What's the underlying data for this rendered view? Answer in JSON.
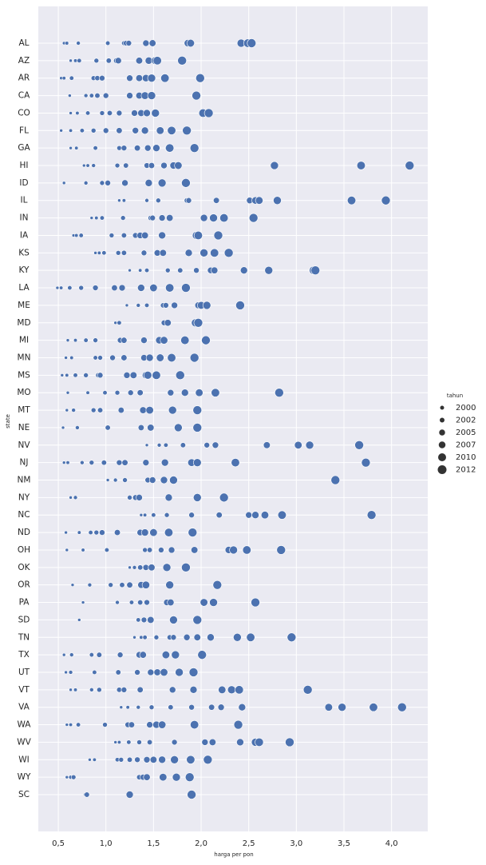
{
  "chart_data": {
    "type": "scatter",
    "xlabel": "harga per pon",
    "ylabel": "state",
    "color": "#4c72b0",
    "grid": true,
    "xlim": [
      0.29,
      4.38
    ],
    "xticks": [
      {
        "value": 0.5,
        "label": "0,5"
      },
      {
        "value": 1.0,
        "label": "1,0"
      },
      {
        "value": 1.5,
        "label": "1,5"
      },
      {
        "value": 2.0,
        "label": "2,0"
      },
      {
        "value": 2.5,
        "label": "2,5"
      },
      {
        "value": 3.0,
        "label": "3,0"
      },
      {
        "value": 3.5,
        "label": "3,5"
      },
      {
        "value": 4.0,
        "label": "4,0"
      }
    ],
    "categories": [
      "AL",
      "AZ",
      "AR",
      "CA",
      "CO",
      "FL",
      "GA",
      "HI",
      "ID",
      "IL",
      "IN",
      "IA",
      "KS",
      "KY",
      "LA",
      "ME",
      "MD",
      "MI",
      "MN",
      "MS",
      "MO",
      "MT",
      "NE",
      "NV",
      "NJ",
      "NM",
      "NY",
      "NC",
      "ND",
      "OH",
      "OK",
      "OR",
      "PA",
      "SD",
      "TN",
      "TX",
      "UT",
      "VT",
      "VA",
      "WA",
      "WV",
      "WI",
      "WY",
      "SC"
    ],
    "points": [
      {
        "x": [
          0.56,
          0.59,
          0.71,
          1.02,
          1.19,
          1.21,
          1.24,
          1.42,
          1.49,
          1.86,
          1.89,
          2.42,
          2.49,
          2.53
        ],
        "year": [
          1998,
          1999,
          2000,
          2001,
          2002,
          2003,
          2004,
          2006,
          2007,
          2008,
          2009,
          2010,
          2011,
          2012
        ]
      },
      {
        "x": [
          0.63,
          0.68,
          0.72,
          0.9,
          1.03,
          1.11,
          1.13,
          1.35,
          1.45,
          1.52,
          1.54,
          1.8
        ],
        "year": [
          1998,
          1999,
          2001,
          2002,
          2003,
          2004,
          2006,
          2007,
          2008,
          2010,
          2011,
          2012
        ]
      },
      {
        "x": [
          0.53,
          0.56,
          0.64,
          0.87,
          0.91,
          0.96,
          1.25,
          1.35,
          1.42,
          1.48,
          1.62,
          1.99
        ],
        "year": [
          1998,
          1999,
          2001,
          2002,
          2003,
          2004,
          2006,
          2007,
          2008,
          2010,
          2011,
          2012
        ]
      },
      {
        "x": [
          0.62,
          0.79,
          0.85,
          0.91,
          1.0,
          1.25,
          1.35,
          1.41,
          1.48,
          1.95
        ],
        "year": [
          1998,
          2000,
          2001,
          2003,
          2004,
          2006,
          2007,
          2009,
          2010,
          2012
        ]
      },
      {
        "x": [
          0.63,
          0.7,
          0.81,
          0.96,
          1.04,
          1.14,
          1.3,
          1.37,
          1.43,
          1.52,
          2.02,
          2.08
        ],
        "year": [
          1998,
          1999,
          2001,
          2002,
          2003,
          2004,
          2006,
          2007,
          2008,
          2010,
          2011,
          2012
        ]
      },
      {
        "x": [
          0.53,
          0.63,
          0.75,
          0.87,
          1.0,
          1.14,
          1.31,
          1.41,
          1.57,
          1.69,
          1.85
        ],
        "year": [
          1998,
          1999,
          2001,
          2002,
          2004,
          2005,
          2006,
          2008,
          2009,
          2011,
          2012
        ]
      },
      {
        "x": [
          0.63,
          0.69,
          0.89,
          1.14,
          1.19,
          1.33,
          1.44,
          1.53,
          1.66,
          1.67,
          1.93
        ],
        "year": [
          1998,
          1999,
          2001,
          2002,
          2004,
          2005,
          2006,
          2008,
          2009,
          2011,
          2012
        ]
      },
      {
        "x": [
          0.77,
          0.81,
          0.87,
          1.12,
          1.21,
          1.43,
          1.48,
          1.61,
          1.71,
          1.76,
          2.77,
          3.68,
          4.19
        ],
        "year": [
          1998,
          1999,
          2000,
          2002,
          2003,
          2004,
          2005,
          2006,
          2008,
          2009,
          2010,
          2011,
          2012
        ]
      },
      {
        "x": [
          0.56,
          0.79,
          0.96,
          1.02,
          1.2,
          1.45,
          1.59,
          1.84
        ],
        "year": [
          1998,
          2000,
          2002,
          2004,
          2006,
          2008,
          2010,
          2012
        ]
      },
      {
        "x": [
          1.14,
          1.19,
          1.43,
          1.55,
          1.85,
          1.87,
          2.16,
          2.51,
          2.57,
          2.61,
          2.8,
          3.58,
          3.94
        ],
        "year": [
          1998,
          1999,
          2000,
          2002,
          2003,
          2004,
          2005,
          2006,
          2008,
          2009,
          2010,
          2011,
          2012
        ]
      },
      {
        "x": [
          0.85,
          0.9,
          0.96,
          1.18,
          1.47,
          1.49,
          1.59,
          1.67,
          2.03,
          2.13,
          2.24,
          2.55
        ],
        "year": [
          1998,
          1999,
          2001,
          2002,
          2003,
          2004,
          2006,
          2007,
          2008,
          2010,
          2011,
          2012
        ]
      },
      {
        "x": [
          0.66,
          0.69,
          0.74,
          1.06,
          1.19,
          1.31,
          1.36,
          1.41,
          1.59,
          1.95,
          1.97,
          2.18
        ],
        "year": [
          1998,
          1999,
          2001,
          2002,
          2003,
          2004,
          2006,
          2007,
          2008,
          2010,
          2011,
          2012
        ]
      },
      {
        "x": [
          0.89,
          0.93,
          0.98,
          1.13,
          1.19,
          1.4,
          1.54,
          1.6,
          1.87,
          2.03,
          2.14,
          2.29
        ],
        "year": [
          1998,
          1999,
          2001,
          2002,
          2003,
          2004,
          2006,
          2007,
          2008,
          2010,
          2011,
          2012
        ]
      },
      {
        "x": [
          1.25,
          1.36,
          1.43,
          1.65,
          1.78,
          1.95,
          2.1,
          2.14,
          2.45,
          2.71,
          3.18,
          3.2
        ],
        "year": [
          1998,
          1999,
          2001,
          2002,
          2003,
          2004,
          2006,
          2007,
          2008,
          2010,
          2011,
          2012
        ]
      },
      {
        "x": [
          0.49,
          0.53,
          0.62,
          0.74,
          0.89,
          1.09,
          1.17,
          1.37,
          1.5,
          1.67,
          1.84
        ],
        "year": [
          1998,
          1999,
          2001,
          2002,
          2004,
          2005,
          2006,
          2008,
          2009,
          2011,
          2012
        ]
      },
      {
        "x": [
          1.22,
          1.34,
          1.43,
          1.6,
          1.63,
          1.72,
          1.97,
          2.0,
          2.06,
          2.41
        ],
        "year": [
          1998,
          2000,
          2001,
          2003,
          2004,
          2006,
          2007,
          2009,
          2010,
          2012
        ]
      },
      {
        "x": [
          1.1,
          1.14,
          1.61,
          1.65,
          1.94,
          1.97
        ],
        "year": [
          1998,
          2001,
          2004,
          2007,
          2010,
          2012
        ]
      },
      {
        "x": [
          0.6,
          0.68,
          0.79,
          0.89,
          1.15,
          1.19,
          1.4,
          1.56,
          1.61,
          1.83,
          2.05
        ],
        "year": [
          1998,
          1999,
          2001,
          2002,
          2004,
          2005,
          2006,
          2008,
          2009,
          2011,
          2012
        ]
      },
      {
        "x": [
          0.58,
          0.64,
          0.89,
          0.94,
          1.07,
          1.19,
          1.4,
          1.46,
          1.57,
          1.69,
          1.93
        ],
        "year": [
          1998,
          1999,
          2001,
          2002,
          2004,
          2005,
          2006,
          2008,
          2009,
          2011,
          2012
        ]
      },
      {
        "x": [
          0.54,
          0.59,
          0.68,
          0.79,
          0.92,
          0.94,
          1.22,
          1.29,
          1.42,
          1.44,
          1.53,
          1.78
        ],
        "year": [
          1998,
          1999,
          2001,
          2002,
          2003,
          2004,
          2006,
          2007,
          2008,
          2010,
          2011,
          2012
        ]
      },
      {
        "x": [
          0.6,
          0.81,
          0.99,
          1.12,
          1.26,
          1.36,
          1.68,
          1.83,
          1.98,
          2.15,
          2.82
        ],
        "year": [
          1998,
          1999,
          2001,
          2002,
          2004,
          2005,
          2006,
          2008,
          2009,
          2011,
          2012
        ]
      },
      {
        "x": [
          0.59,
          0.66,
          0.87,
          0.94,
          1.16,
          1.39,
          1.46,
          1.7,
          1.96
        ],
        "year": [
          1998,
          2000,
          2002,
          2003,
          2005,
          2007,
          2009,
          2010,
          2012
        ]
      },
      {
        "x": [
          0.55,
          0.7,
          1.02,
          1.37,
          1.47,
          1.76,
          1.96
        ],
        "year": [
          1998,
          2000,
          2003,
          2005,
          2007,
          2010,
          2012
        ]
      },
      {
        "x": [
          1.43,
          1.56,
          1.63,
          1.81,
          2.06,
          2.15,
          2.69,
          3.02,
          3.14,
          3.66
        ],
        "year": [
          1998,
          2000,
          2001,
          2003,
          2004,
          2006,
          2007,
          2009,
          2010,
          2012
        ]
      },
      {
        "x": [
          0.56,
          0.6,
          0.75,
          0.85,
          0.98,
          1.14,
          1.2,
          1.42,
          1.62,
          1.9,
          1.96,
          2.36,
          3.73
        ],
        "year": [
          1998,
          1999,
          2000,
          2002,
          2003,
          2004,
          2005,
          2006,
          2008,
          2009,
          2010,
          2011,
          2012
        ]
      },
      {
        "x": [
          1.02,
          1.1,
          1.2,
          1.44,
          1.49,
          1.61,
          1.71,
          3.41
        ],
        "year": [
          1998,
          2000,
          2002,
          2004,
          2006,
          2008,
          2010,
          2012
        ]
      },
      {
        "x": [
          0.63,
          0.68,
          1.25,
          1.31,
          1.35,
          1.66,
          1.96,
          2.24
        ],
        "year": [
          1998,
          2000,
          2002,
          2004,
          2006,
          2008,
          2010,
          2012
        ]
      },
      {
        "x": [
          1.37,
          1.41,
          1.5,
          1.64,
          1.9,
          2.19,
          2.5,
          2.57,
          2.67,
          2.85,
          3.79
        ],
        "year": [
          1998,
          1999,
          2001,
          2002,
          2004,
          2005,
          2006,
          2008,
          2009,
          2011,
          2012
        ]
      },
      {
        "x": [
          0.58,
          0.72,
          0.84,
          0.9,
          0.96,
          1.12,
          1.36,
          1.41,
          1.5,
          1.66,
          1.91
        ],
        "year": [
          1998,
          1999,
          2001,
          2002,
          2004,
          2005,
          2006,
          2008,
          2009,
          2011,
          2012
        ]
      },
      {
        "x": [
          0.59,
          0.76,
          1.01,
          1.41,
          1.46,
          1.58,
          1.69,
          1.93,
          2.29,
          2.34,
          2.48,
          2.84
        ],
        "year": [
          1998,
          1999,
          2001,
          2002,
          2003,
          2004,
          2006,
          2007,
          2008,
          2010,
          2011,
          2012
        ]
      },
      {
        "x": [
          1.25,
          1.3,
          1.36,
          1.42,
          1.48,
          1.64,
          1.84
        ],
        "year": [
          1998,
          2000,
          2003,
          2005,
          2007,
          2010,
          2012
        ]
      },
      {
        "x": [
          0.65,
          0.83,
          1.05,
          1.17,
          1.25,
          1.37,
          1.42,
          1.67,
          2.17
        ],
        "year": [
          1998,
          2000,
          2002,
          2003,
          2005,
          2007,
          2009,
          2010,
          2012
        ]
      },
      {
        "x": [
          0.76,
          1.12,
          1.27,
          1.36,
          1.43,
          1.64,
          1.68,
          2.03,
          2.13,
          2.57
        ],
        "year": [
          1998,
          2000,
          2001,
          2003,
          2004,
          2006,
          2007,
          2009,
          2010,
          2012
        ]
      },
      {
        "x": [
          0.72,
          1.34,
          1.4,
          1.47,
          1.71,
          1.96
        ],
        "year": [
          1998,
          2001,
          2004,
          2007,
          2010,
          2012
        ]
      },
      {
        "x": [
          1.3,
          1.37,
          1.41,
          1.53,
          1.67,
          1.71,
          1.85,
          1.96,
          2.1,
          2.38,
          2.52,
          2.95
        ],
        "year": [
          1998,
          1999,
          2001,
          2002,
          2003,
          2004,
          2006,
          2007,
          2008,
          2010,
          2011,
          2012
        ]
      },
      {
        "x": [
          0.56,
          0.64,
          0.85,
          0.93,
          1.15,
          1.35,
          1.39,
          1.63,
          1.73,
          2.01
        ],
        "year": [
          1998,
          2000,
          2001,
          2003,
          2004,
          2006,
          2007,
          2009,
          2010,
          2012
        ]
      },
      {
        "x": [
          0.58,
          0.63,
          0.88,
          1.13,
          1.33,
          1.47,
          1.54,
          1.61,
          1.77,
          1.92
        ],
        "year": [
          1998,
          2000,
          2001,
          2003,
          2004,
          2006,
          2007,
          2009,
          2010,
          2012
        ]
      },
      {
        "x": [
          0.63,
          0.68,
          0.85,
          0.93,
          1.14,
          1.19,
          1.36,
          1.7,
          1.92,
          2.22,
          2.32,
          2.4,
          3.12
        ],
        "year": [
          1998,
          1999,
          2000,
          2002,
          2003,
          2004,
          2005,
          2006,
          2008,
          2009,
          2010,
          2011,
          2012
        ]
      },
      {
        "x": [
          1.16,
          1.23,
          1.34,
          1.48,
          1.68,
          1.9,
          2.11,
          2.21,
          2.43,
          3.34,
          3.48,
          3.81,
          4.11
        ],
        "year": [
          1998,
          1999,
          2000,
          2002,
          2003,
          2004,
          2005,
          2006,
          2008,
          2009,
          2010,
          2011,
          2012
        ]
      },
      {
        "x": [
          0.59,
          0.63,
          0.71,
          0.99,
          1.23,
          1.27,
          1.46,
          1.53,
          1.59,
          1.93,
          2.39
        ],
        "year": [
          1998,
          1999,
          2001,
          2002,
          2004,
          2005,
          2006,
          2008,
          2009,
          2011,
          2012
        ]
      },
      {
        "x": [
          1.1,
          1.14,
          1.24,
          1.35,
          1.46,
          1.72,
          2.04,
          2.12,
          2.41,
          2.57,
          2.61,
          2.93
        ],
        "year": [
          1998,
          1999,
          2001,
          2002,
          2003,
          2004,
          2006,
          2007,
          2008,
          2010,
          2011,
          2012
        ]
      },
      {
        "x": [
          0.83,
          0.88,
          1.12,
          1.16,
          1.25,
          1.33,
          1.43,
          1.5,
          1.59,
          1.72,
          1.89,
          2.07
        ],
        "year": [
          1998,
          1999,
          2001,
          2002,
          2003,
          2004,
          2006,
          2007,
          2008,
          2010,
          2011,
          2012
        ]
      },
      {
        "x": [
          0.59,
          0.63,
          0.66,
          1.35,
          1.39,
          1.43,
          1.6,
          1.74,
          1.88
        ],
        "year": [
          1998,
          2000,
          2002,
          2003,
          2005,
          2007,
          2009,
          2010,
          2012
        ]
      },
      {
        "x": [
          0.78,
          0.8,
          1.25,
          1.9
        ],
        "year": [
          1998,
          2003,
          2008,
          2012
        ]
      }
    ],
    "size_legend": {
      "title": "tahun",
      "values": [
        2000,
        2002,
        2005,
        2007,
        2010,
        2012
      ]
    }
  }
}
